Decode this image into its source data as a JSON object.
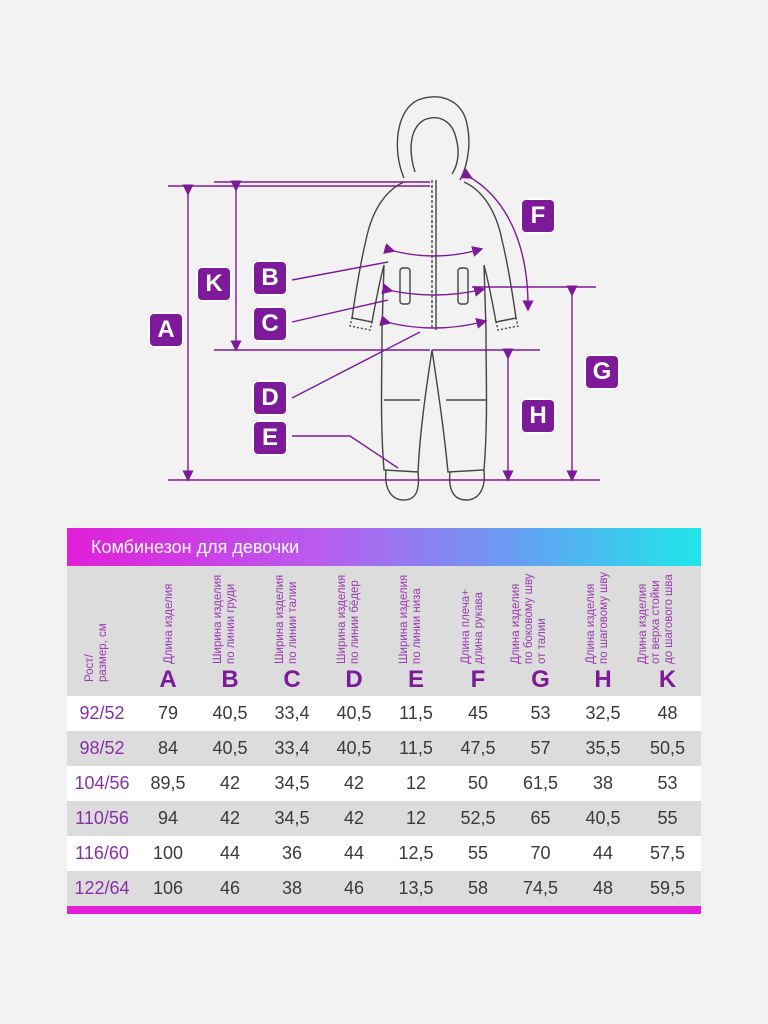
{
  "figure": {
    "dimension_labels": [
      "A",
      "K",
      "B",
      "C",
      "D",
      "E",
      "F",
      "G",
      "H"
    ]
  },
  "table": {
    "title": "Комбинезон для девочки",
    "first_column_header": "Рост/\nразмер, см",
    "columns": [
      {
        "letter": "A",
        "description": "Длина изделия"
      },
      {
        "letter": "B",
        "description": "Ширина изделия\nпо линии груди"
      },
      {
        "letter": "C",
        "description": "Ширина изделия\nпо линии талии"
      },
      {
        "letter": "D",
        "description": "Ширина изделия\nпо линии бёдер"
      },
      {
        "letter": "E",
        "description": "Ширина изделия\nпо линии низа"
      },
      {
        "letter": "F",
        "description": "Длина плеча+\nдлина рукава"
      },
      {
        "letter": "G",
        "description": "Длина изделия\nпо боковому шву\nот талии"
      },
      {
        "letter": "H",
        "description": "Длина изделия\nпо шаговому шву"
      },
      {
        "letter": "K",
        "description": "Длина изделия\nот верха стойки\nдо шагового шва"
      }
    ],
    "rows": [
      {
        "size": "92/52",
        "values": [
          "79",
          "40,5",
          "33,4",
          "40,5",
          "11,5",
          "45",
          "53",
          "32,5",
          "48"
        ]
      },
      {
        "size": "98/52",
        "values": [
          "84",
          "40,5",
          "33,4",
          "40,5",
          "11,5",
          "47,5",
          "57",
          "35,5",
          "50,5"
        ]
      },
      {
        "size": "104/56",
        "values": [
          "89,5",
          "42",
          "34,5",
          "42",
          "12",
          "50",
          "61,5",
          "38",
          "53"
        ]
      },
      {
        "size": "110/56",
        "values": [
          "94",
          "42",
          "34,5",
          "42",
          "12",
          "52,5",
          "65",
          "40,5",
          "55"
        ]
      },
      {
        "size": "116/60",
        "values": [
          "100",
          "44",
          "36",
          "44",
          "12,5",
          "55",
          "70",
          "44",
          "57,5"
        ]
      },
      {
        "size": "122/64",
        "values": [
          "106",
          "46",
          "38",
          "46",
          "13,5",
          "58",
          "74,5",
          "48",
          "59,5"
        ]
      }
    ]
  },
  "colors": {
    "accent_purple": "#7d1a9a",
    "header_gradient": [
      "#e11fd8",
      "#1fe6ea"
    ],
    "footer_bar": "#e11fd8"
  }
}
